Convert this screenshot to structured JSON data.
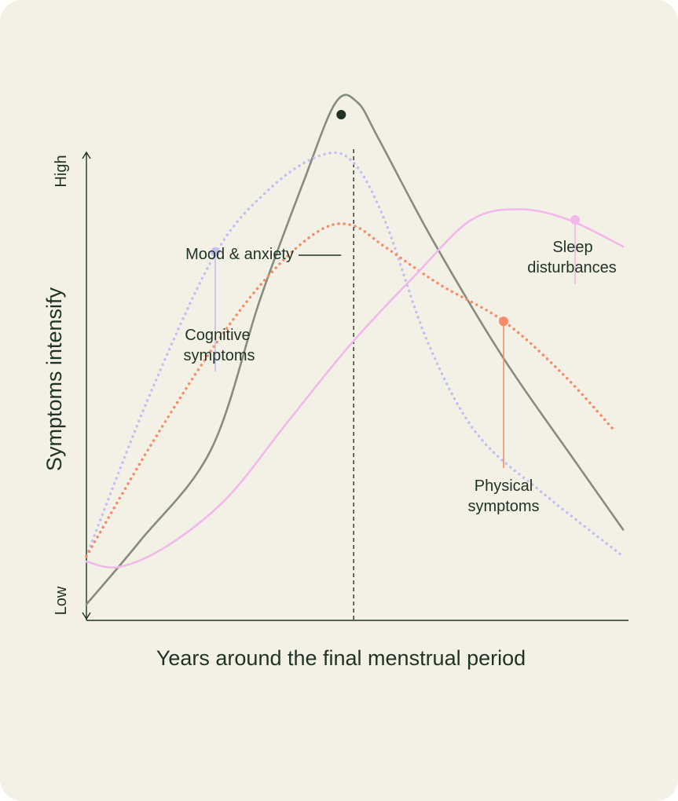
{
  "chart_data": {
    "type": "line",
    "title": "",
    "xlabel": "Years around the final menstrual period",
    "ylabel": "Symptoms intensify",
    "ytick_low": "Low",
    "ytick_high": "High",
    "x_range": [
      0,
      100
    ],
    "y_range": [
      0,
      100
    ],
    "marker_line_x": 49.3,
    "series": [
      {
        "name": "Mood & anxiety",
        "label_text": "Mood & anxiety",
        "color": "#858e7d",
        "marker_color": "#1f3324",
        "style": "solid",
        "x": [
          0,
          10,
          23,
          32,
          40,
          46,
          50,
          54,
          64,
          77,
          90,
          99
        ],
        "y": [
          3,
          15,
          32,
          60,
          82,
          97,
          97,
          90,
          71,
          49,
          30,
          17
        ],
        "marker": [
          47,
          94.7
        ]
      },
      {
        "name": "Cognitive symptoms",
        "label_text": [
          "Cognitive",
          "symptoms"
        ],
        "color": "#c3bff2",
        "marker_color": "#c3bff2",
        "style": "dotted",
        "x": [
          0,
          12,
          24,
          34,
          43,
          49,
          55,
          63,
          72,
          84,
          99
        ],
        "y": [
          12,
          43,
          69,
          81,
          87,
          86,
          75,
          52,
          35,
          24,
          12
        ],
        "marker": [
          24,
          69
        ]
      },
      {
        "name": "Physical symptoms",
        "label_text": [
          "Physical",
          "symptoms"
        ],
        "color": "#f58c6a",
        "marker_color": "#f58c6a",
        "style": "dotted",
        "x": [
          0,
          12,
          24,
          34,
          43,
          49,
          55,
          65,
          77,
          88,
          97
        ],
        "y": [
          12,
          33,
          52,
          65,
          73,
          74,
          70,
          63,
          56,
          46,
          36
        ],
        "marker": [
          77,
          56
        ]
      },
      {
        "name": "Sleep disturbances",
        "label_text": [
          "Sleep",
          "disturbances"
        ],
        "color": "#f2b8eb",
        "marker_color": "#f2b8eb",
        "style": "solid",
        "x": [
          0,
          6,
          15,
          26,
          37,
          49,
          61,
          71,
          80,
          89,
          99
        ],
        "y": [
          11,
          10,
          14,
          23,
          37,
          52,
          65,
          75,
          77,
          75,
          70
        ],
        "marker": [
          90,
          75
        ]
      }
    ]
  }
}
